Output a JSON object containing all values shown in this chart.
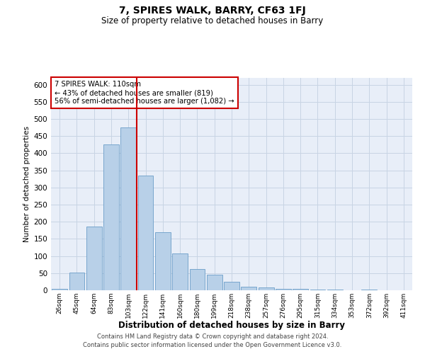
{
  "title": "7, SPIRES WALK, BARRY, CF63 1FJ",
  "subtitle": "Size of property relative to detached houses in Barry",
  "xlabel": "Distribution of detached houses by size in Barry",
  "ylabel": "Number of detached properties",
  "bar_color": "#b8d0e8",
  "bar_edge_color": "#6a9dc8",
  "grid_color": "#c8d4e4",
  "bg_color": "#e8eef8",
  "annotation_box_color": "#cc0000",
  "vline_color": "#cc0000",
  "categories": [
    "26sqm",
    "45sqm",
    "64sqm",
    "83sqm",
    "103sqm",
    "122sqm",
    "141sqm",
    "160sqm",
    "180sqm",
    "199sqm",
    "218sqm",
    "238sqm",
    "257sqm",
    "276sqm",
    "295sqm",
    "315sqm",
    "334sqm",
    "353sqm",
    "372sqm",
    "392sqm",
    "411sqm"
  ],
  "values": [
    5,
    52,
    187,
    425,
    475,
    335,
    170,
    107,
    62,
    45,
    24,
    11,
    8,
    5,
    5,
    2,
    2,
    1,
    3,
    1,
    1
  ],
  "vline_position": 4.5,
  "ylim": [
    0,
    620
  ],
  "yticks": [
    0,
    50,
    100,
    150,
    200,
    250,
    300,
    350,
    400,
    450,
    500,
    550,
    600
  ],
  "annotation_text": "7 SPIRES WALK: 110sqm\n← 43% of detached houses are smaller (819)\n56% of semi-detached houses are larger (1,082) →",
  "footer_line1": "Contains HM Land Registry data © Crown copyright and database right 2024.",
  "footer_line2": "Contains public sector information licensed under the Open Government Licence v3.0."
}
